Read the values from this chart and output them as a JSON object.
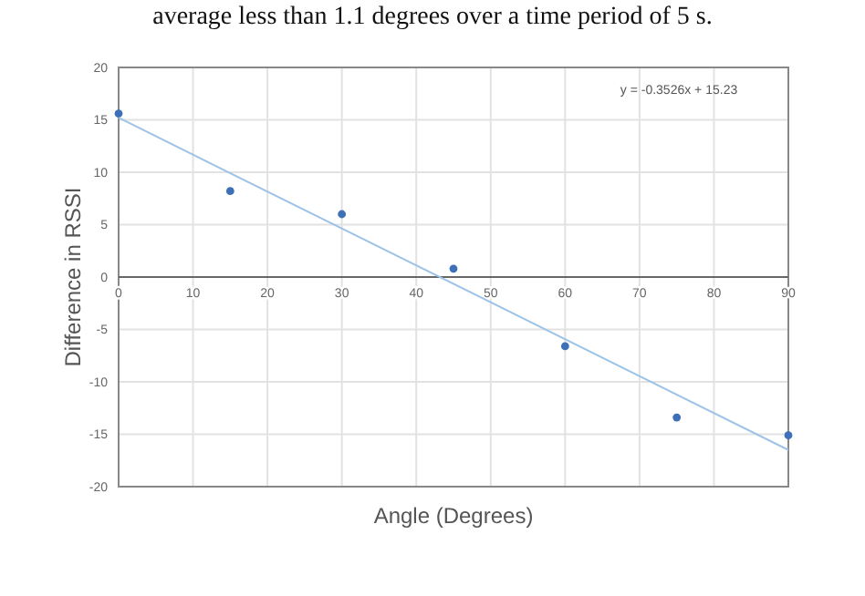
{
  "chart_data": {
    "type": "scatter",
    "xlabel": "Angle (Degrees)",
    "ylabel": "Difference in RSSI",
    "annotations": [
      "average less than 1.1 degrees over a time period of 5 s.",
      "y = -0.3526x + 15.23"
    ],
    "series": [
      {
        "type": "scatter",
        "color": "#3e70b8",
        "x": [
          0,
          15,
          30,
          45,
          60,
          75,
          90
        ],
        "values": [
          15.6,
          8.2,
          6,
          0.8,
          -6.6,
          -13.4,
          -15.1
        ],
        "marker": "circle"
      },
      {
        "type": "line",
        "color": "#9dc3e6",
        "x": [
          0,
          90
        ],
        "values": [
          15.2,
          -16.5
        ],
        "marker": "none"
      }
    ],
    "xlim": [
      0,
      90
    ],
    "xticks": [
      0,
      10,
      20,
      30,
      40,
      50,
      60,
      70,
      80,
      90
    ],
    "ylim": [
      -20,
      20
    ],
    "yticks": [
      -20,
      -15,
      -10,
      -5,
      0,
      5,
      10,
      15,
      20
    ],
    "grid": true
  }
}
